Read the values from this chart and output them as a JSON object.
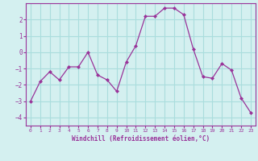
{
  "x": [
    0,
    1,
    2,
    3,
    4,
    5,
    6,
    7,
    8,
    9,
    10,
    11,
    12,
    13,
    14,
    15,
    16,
    17,
    18,
    19,
    20,
    21,
    22,
    23
  ],
  "y": [
    -3.0,
    -1.8,
    -1.2,
    -1.7,
    -0.9,
    -0.9,
    0.0,
    -1.4,
    -1.7,
    -2.4,
    -0.6,
    0.4,
    2.2,
    2.2,
    2.7,
    2.7,
    2.3,
    0.2,
    -1.5,
    -1.6,
    -0.7,
    -1.1,
    -2.8,
    -3.7
  ],
  "line_color": "#993399",
  "marker_color": "#993399",
  "bg_color": "#d4f0f0",
  "grid_color": "#aadddd",
  "xlabel": "Windchill (Refroidissement éolien,°C)",
  "ylim": [
    -4.5,
    3.0
  ],
  "xlim": [
    -0.5,
    23.5
  ],
  "yticks": [
    -4,
    -3,
    -2,
    -1,
    0,
    1,
    2
  ],
  "xtick_labels": [
    "0",
    "1",
    "2",
    "3",
    "4",
    "5",
    "6",
    "7",
    "8",
    "9",
    "10",
    "11",
    "12",
    "13",
    "14",
    "15",
    "16",
    "17",
    "18",
    "19",
    "20",
    "21",
    "22",
    "23"
  ],
  "label_color": "#993399",
  "tick_color": "#993399",
  "spine_color": "#993399"
}
